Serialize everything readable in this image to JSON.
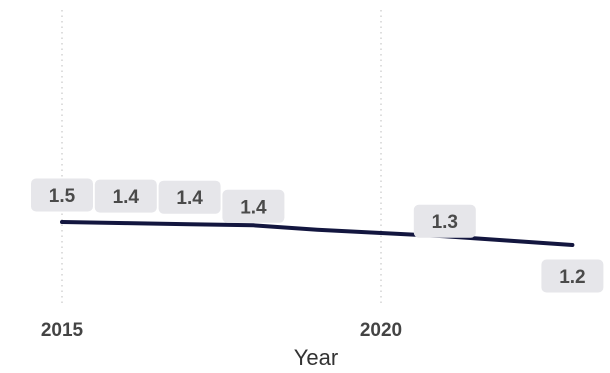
{
  "chart_data": {
    "type": "line",
    "xlabel": "Year",
    "ylabel": "",
    "x_ticks": [
      2015,
      2020
    ],
    "grid": {
      "vertical": true,
      "horizontal": false
    },
    "series": [
      {
        "color": "#13163f",
        "points": [
          {
            "x": 2015,
            "y": 1.45,
            "label": "1.5"
          },
          {
            "x": 2016,
            "y": 1.44,
            "label": "1.4"
          },
          {
            "x": 2017,
            "y": 1.43,
            "label": "1.4"
          },
          {
            "x": 2018,
            "y": 1.42,
            "label": "1.4"
          },
          {
            "x": 2019,
            "y": 1.38,
            "label": ""
          },
          {
            "x": 2020,
            "y": 1.35,
            "label": ""
          },
          {
            "x": 2021,
            "y": 1.32,
            "label": "1.3"
          },
          {
            "x": 2022,
            "y": 1.28,
            "label": ""
          },
          {
            "x": 2023,
            "y": 1.24,
            "label": "1.2"
          }
        ]
      }
    ]
  }
}
